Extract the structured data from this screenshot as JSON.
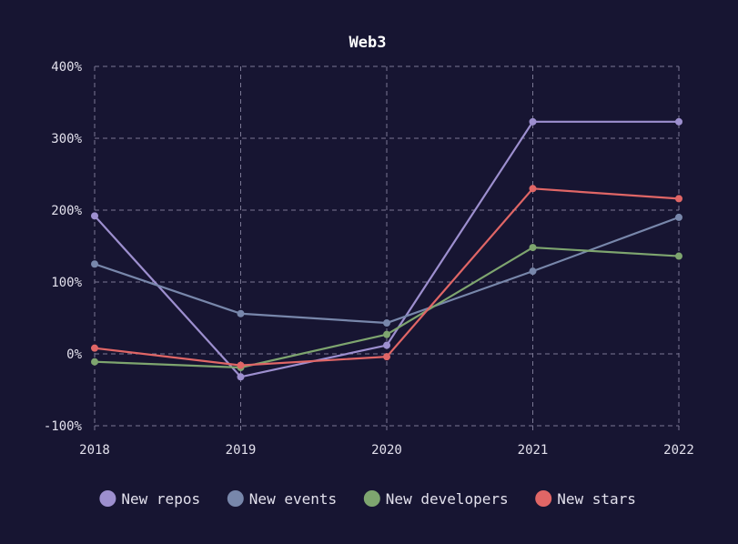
{
  "chart_data": {
    "type": "line",
    "title": "Web3",
    "xlabel": "",
    "ylabel": "",
    "x": [
      "2018",
      "2019",
      "2020",
      "2021",
      "2022"
    ],
    "ylim": [
      -100,
      400
    ],
    "yticks": [
      -100,
      0,
      100,
      200,
      300,
      400
    ],
    "y_tick_suffix": "%",
    "grid": true,
    "legend_position": "bottom",
    "series": [
      {
        "name": "New repos",
        "color": "#9d8fcf",
        "values": [
          192,
          -32,
          12,
          323,
          323
        ]
      },
      {
        "name": "New events",
        "color": "#7887ab",
        "values": [
          125,
          56,
          43,
          115,
          190
        ]
      },
      {
        "name": "New developers",
        "color": "#7ea56f",
        "values": [
          -11,
          -19,
          27,
          148,
          136
        ]
      },
      {
        "name": "New stars",
        "color": "#e06666",
        "values": [
          8,
          -16,
          -4,
          230,
          216
        ]
      }
    ]
  }
}
